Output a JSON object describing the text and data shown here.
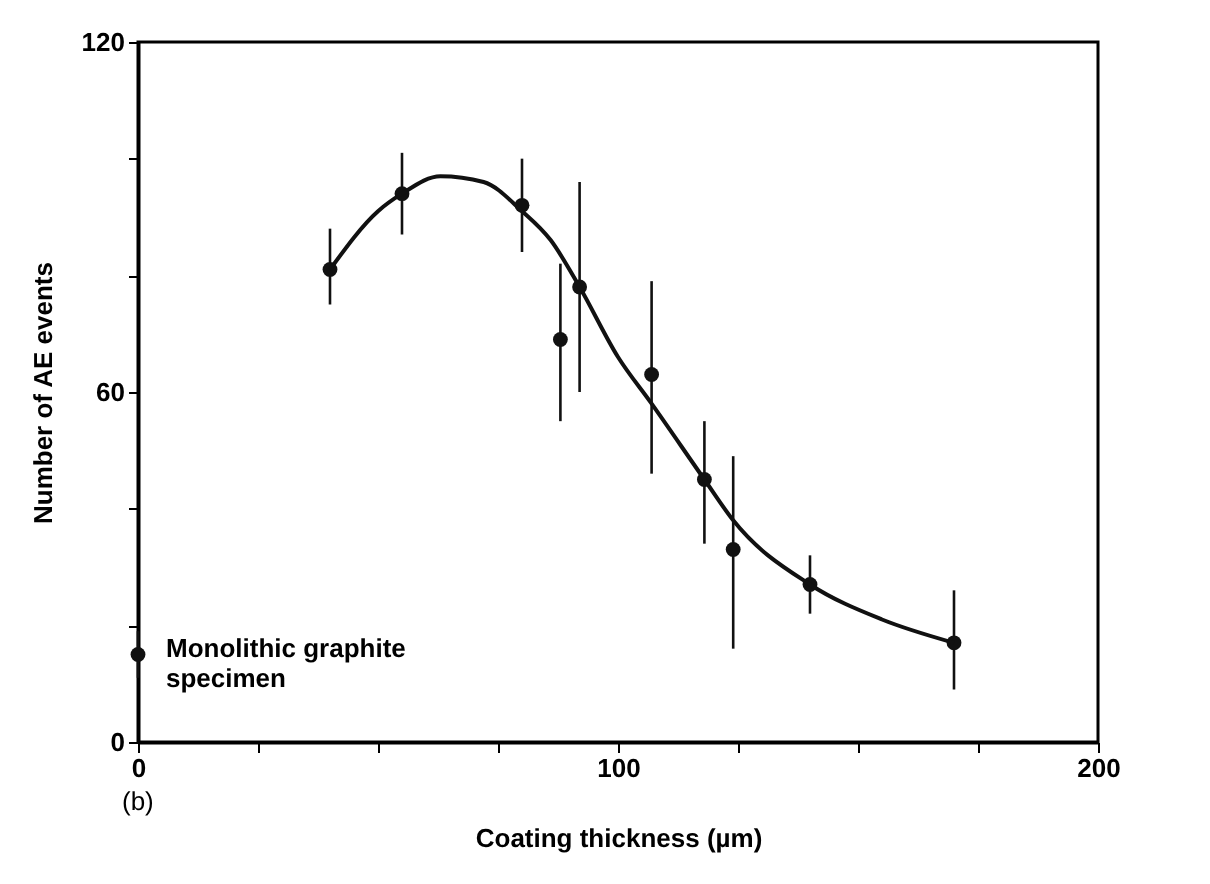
{
  "chart_data": {
    "type": "scatter",
    "xlabel": "Coating thickness (µm)",
    "ylabel": "Number of AE events",
    "xlim": [
      0,
      200
    ],
    "ylim": [
      0,
      120
    ],
    "xticks": [
      0,
      {
        "value": 25,
        "label": null
      },
      {
        "value": 50,
        "label": null
      },
      {
        "value": 75,
        "label": null
      },
      100,
      {
        "value": 125,
        "label": null
      },
      {
        "value": 150,
        "label": null
      },
      {
        "value": 175,
        "label": null
      },
      200
    ],
    "yticks": [
      0,
      {
        "value": 20,
        "label": null
      },
      {
        "value": 40,
        "label": null
      },
      60,
      {
        "value": 80,
        "label": null
      },
      {
        "value": 100,
        "label": null
      },
      120
    ],
    "grid": false,
    "marker": "circle",
    "series": [
      {
        "type": "scatter",
        "color": "#111111",
        "x": [
          0,
          40,
          55,
          80,
          88,
          92,
          107,
          118,
          124,
          140,
          170
        ],
        "values": [
          15,
          81,
          94,
          92,
          69,
          78,
          63,
          45,
          33,
          27,
          17
        ],
        "errors": [
          [
            11,
            19
          ],
          [
            75,
            88
          ],
          [
            87,
            101
          ],
          [
            84,
            100
          ],
          [
            55,
            82
          ],
          [
            60,
            96
          ],
          [
            46,
            79
          ],
          [
            34,
            55
          ],
          [
            16,
            49
          ],
          [
            22,
            32
          ],
          [
            9,
            26
          ]
        ]
      },
      {
        "type": "line",
        "color": "#111111",
        "marker": "none",
        "x": [
          40,
          50,
          55,
          63,
          72,
          80,
          86,
          92,
          100,
          107,
          118,
          124,
          140,
          155,
          170
        ],
        "values": [
          81,
          91,
          94,
          97,
          96,
          91,
          86,
          78,
          66,
          58,
          45,
          38,
          27,
          21,
          17
        ]
      }
    ],
    "annotations": [
      {
        "text": "Monolithic graphite specimen",
        "x": 0,
        "y": 15
      },
      "(b)"
    ]
  }
}
